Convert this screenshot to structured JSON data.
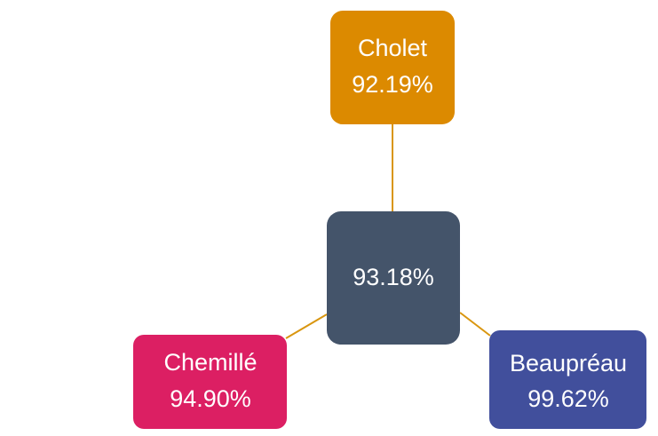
{
  "center": {
    "label": "93.18%"
  },
  "nodes": [
    {
      "name": "Cholet",
      "value": "92.19%"
    },
    {
      "name": "Chemillé",
      "value": "94.90%"
    },
    {
      "name": "Beaupréau",
      "value": "99.62%"
    }
  ]
}
